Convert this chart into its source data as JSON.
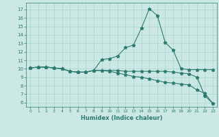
{
  "line1_x": [
    0,
    1,
    2,
    3,
    4,
    5,
    6,
    7,
    8,
    9,
    10,
    11,
    12,
    13,
    14,
    15,
    16,
    17,
    18,
    19,
    20,
    21,
    22,
    23
  ],
  "line1_y": [
    10.1,
    10.2,
    10.2,
    10.1,
    10.0,
    9.7,
    9.6,
    9.6,
    9.8,
    11.1,
    11.2,
    11.5,
    12.5,
    12.8,
    14.8,
    17.1,
    16.3,
    13.1,
    12.2,
    10.0,
    9.9,
    9.9,
    9.9,
    9.9
  ],
  "line2_x": [
    0,
    1,
    2,
    3,
    4,
    5,
    6,
    7,
    8,
    9,
    10,
    11,
    12,
    13,
    14,
    15,
    16,
    17,
    18,
    19,
    20,
    21,
    22,
    23
  ],
  "line2_y": [
    10.1,
    10.2,
    10.2,
    10.1,
    10.0,
    9.7,
    9.6,
    9.6,
    9.8,
    9.8,
    9.7,
    9.5,
    9.3,
    9.1,
    9.0,
    8.8,
    8.6,
    8.4,
    8.3,
    8.2,
    8.1,
    7.5,
    7.1,
    5.9
  ],
  "line3_x": [
    0,
    1,
    2,
    3,
    4,
    5,
    6,
    7,
    8,
    9,
    10,
    11,
    12,
    13,
    14,
    15,
    16,
    17,
    18,
    19,
    20,
    21,
    22,
    23
  ],
  "line3_y": [
    10.1,
    10.2,
    10.2,
    10.1,
    10.0,
    9.7,
    9.6,
    9.6,
    9.8,
    9.8,
    9.8,
    9.8,
    9.7,
    9.7,
    9.7,
    9.7,
    9.7,
    9.7,
    9.6,
    9.5,
    9.4,
    9.0,
    6.8,
    5.9
  ],
  "line_color": "#2a7a6e",
  "bg_color": "#cce8e4",
  "grid_color": "#aad4cf",
  "xlabel": "Humidex (Indice chaleur)",
  "ylim": [
    5.5,
    17.8
  ],
  "xlim": [
    -0.5,
    23.5
  ],
  "yticks": [
    6,
    7,
    8,
    9,
    10,
    11,
    12,
    13,
    14,
    15,
    16,
    17
  ],
  "xticks": [
    0,
    1,
    2,
    3,
    4,
    5,
    6,
    7,
    8,
    9,
    10,
    11,
    12,
    13,
    14,
    15,
    16,
    17,
    18,
    19,
    20,
    21,
    22,
    23
  ]
}
